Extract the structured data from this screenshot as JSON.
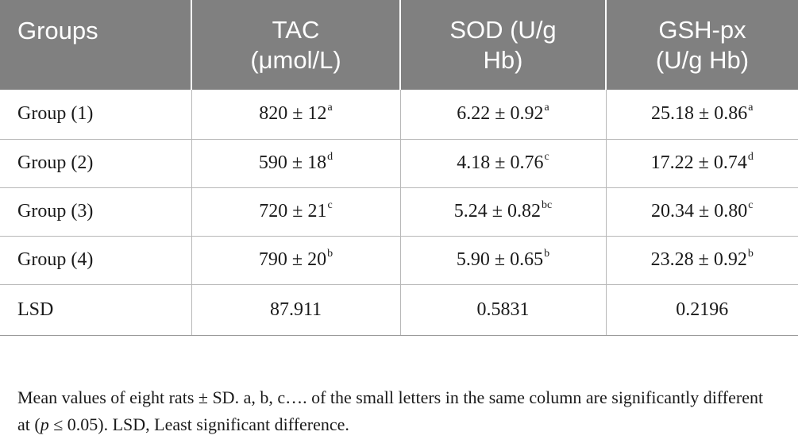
{
  "table": {
    "headers": [
      {
        "line1": "Groups",
        "line2": ""
      },
      {
        "line1": "TAC",
        "line2": "(μmol/L)"
      },
      {
        "line1": "SOD (U/g",
        "line2": "Hb)"
      },
      {
        "line1": "GSH-px",
        "line2": "(U/g Hb)"
      }
    ],
    "rows": [
      {
        "label": "Group (1)",
        "cells": [
          {
            "value": "820 ± 12",
            "sup": "a"
          },
          {
            "value": "6.22 ± 0.92",
            "sup": "a"
          },
          {
            "value": "25.18 ± 0.86",
            "sup": "a"
          }
        ]
      },
      {
        "label": "Group (2)",
        "cells": [
          {
            "value": "590 ± 18",
            "sup": "d"
          },
          {
            "value": "4.18 ± 0.76",
            "sup": "c"
          },
          {
            "value": "17.22 ± 0.74",
            "sup": "d"
          }
        ]
      },
      {
        "label": "Group (3)",
        "cells": [
          {
            "value": "720 ± 21",
            "sup": "c"
          },
          {
            "value": "5.24 ± 0.82",
            "sup": "bc"
          },
          {
            "value": "20.34 ± 0.80",
            "sup": "c"
          }
        ]
      },
      {
        "label": "Group (4)",
        "cells": [
          {
            "value": "790 ± 20",
            "sup": "b"
          },
          {
            "value": "5.90 ± 0.65",
            "sup": "b"
          },
          {
            "value": "23.28 ± 0.92",
            "sup": "b"
          }
        ]
      },
      {
        "label": "LSD",
        "cells": [
          {
            "value": "87.911",
            "sup": ""
          },
          {
            "value": "0.5831",
            "sup": ""
          },
          {
            "value": "0.2196",
            "sup": ""
          }
        ]
      }
    ]
  },
  "footnote": {
    "part1": "Mean values of eight rats ± SD. a, b, c…. of the small letters in the same column are significantly different at (",
    "p": "p",
    "part2": " ≤ 0.05). LSD, Least significant difference."
  }
}
